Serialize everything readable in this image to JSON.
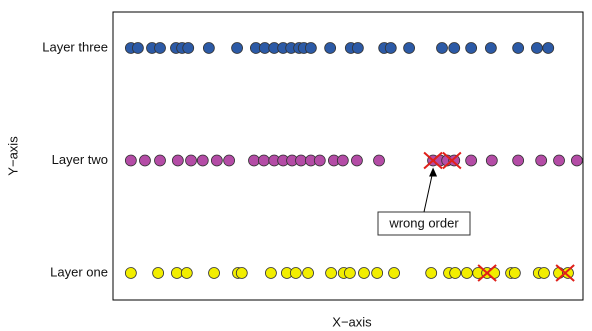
{
  "chart_data": {
    "type": "strip",
    "xlabel": "X−axis",
    "ylabel": "Y−axis",
    "xlim": [
      0,
      100
    ],
    "series": [
      {
        "name": "Layer one",
        "color": "#f2ee00",
        "x": [
          3.8,
          9.6,
          13.6,
          15.7,
          21.5,
          26.6,
          27.4,
          33.6,
          37.0,
          38.9,
          41.5,
          46.4,
          49.1,
          50.4,
          53.4,
          56.2,
          59.8,
          67.7,
          71.5,
          72.8,
          75.3,
          77.7,
          79.6,
          81.1,
          84.7,
          85.5,
          90.6,
          91.7,
          94.9,
          96.8
        ],
        "crossed": [
          79.6,
          96.2
        ]
      },
      {
        "name": "Layer two",
        "color": "#b44ca6",
        "x": [
          3.8,
          6.8,
          10.0,
          13.8,
          16.6,
          19.1,
          22.1,
          24.7,
          30.0,
          32.1,
          34.3,
          36.2,
          38.1,
          40.0,
          42.1,
          44.0,
          47.0,
          48.9,
          51.9,
          56.6,
          68.1,
          69.6,
          71.1,
          72.6,
          76.2,
          80.6,
          86.2,
          91.1,
          94.9,
          98.7
        ],
        "crossed": [
          68.1,
          72.1
        ]
      },
      {
        "name": "Layer three",
        "color": "#2c5aa6",
        "x": [
          3.8,
          5.3,
          8.3,
          10.0,
          13.4,
          14.7,
          16.0,
          20.4,
          26.4,
          30.4,
          32.3,
          34.3,
          36.2,
          37.9,
          39.6,
          40.6,
          42.1,
          46.2,
          50.6,
          52.1,
          57.7,
          59.1,
          63.0,
          70.0,
          72.6,
          76.2,
          80.4,
          86.2,
          90.2,
          92.6
        ]
      }
    ],
    "annotation": {
      "text": "wrong order",
      "series": 1,
      "x": 68.1
    }
  }
}
